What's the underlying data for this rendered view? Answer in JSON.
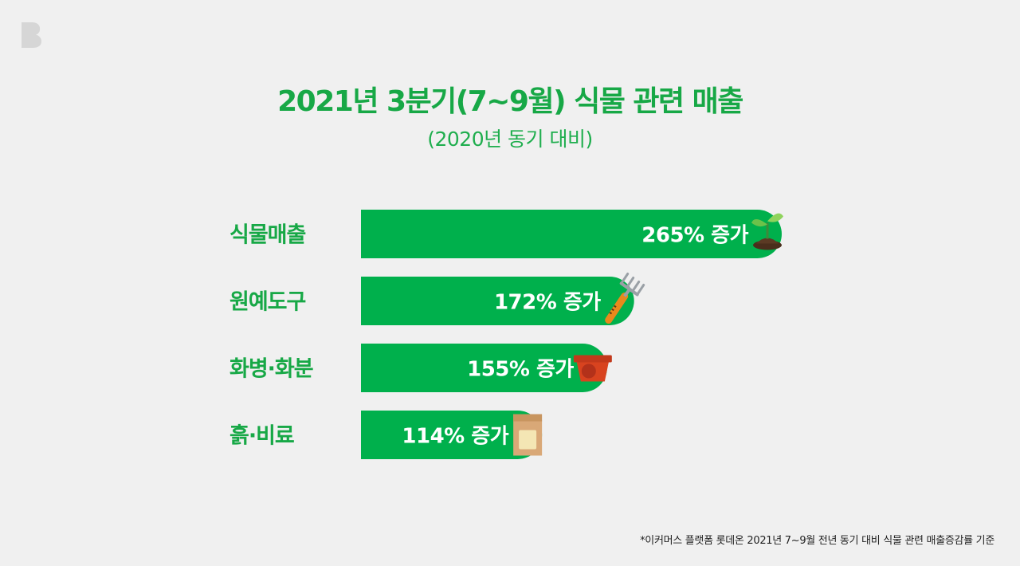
{
  "header": {
    "title": "2021년 3분기(7~9월) 식물 관련 매출",
    "subtitle": "(2020년 동기 대비)"
  },
  "footnote": "*이커머스 플랫폼 롯데온 2021년 7~9월 전년 동기 대비 식물 관련 매출증감률 기준",
  "colors": {
    "bar": "#00b04c",
    "category_label": "#17a846",
    "title": "#17a846",
    "background": "#f0f0f0"
  },
  "chart_data": {
    "type": "bar",
    "orientation": "horizontal",
    "categories": [
      "식물매출",
      "원예도구",
      "화병·화분",
      "흙·비료"
    ],
    "values": [
      265,
      172,
      155,
      114
    ],
    "value_labels": [
      "265% 증가",
      "172% 증가",
      "155% 증가",
      "114% 증가"
    ],
    "icons": [
      "sprout-icon",
      "garden-rake-icon",
      "flower-pot-icon",
      "soil-bag-icon"
    ],
    "unit": "%",
    "grid": false,
    "legend": "none"
  }
}
